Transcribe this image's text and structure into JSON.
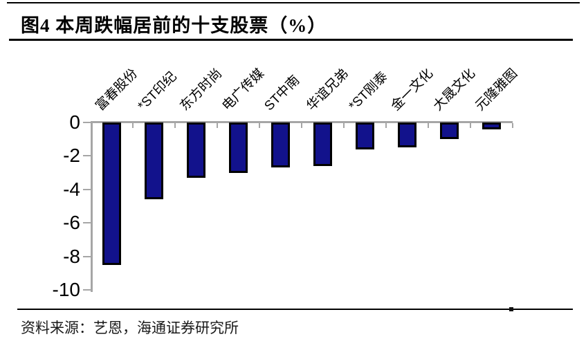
{
  "figure": {
    "label": "图4"
  },
  "chart_data": {
    "type": "bar",
    "title": "图4  本周跌幅居前的十支股票（%）",
    "categories": [
      "富春股份",
      "*ST印纪",
      "东方时尚",
      "电广传媒",
      "ST中南",
      "华谊兄弟",
      "*ST刚泰",
      "金一文化",
      "大晟文化",
      "元隆雅图"
    ],
    "values": [
      -8.5,
      -4.6,
      -3.3,
      -3.0,
      -2.7,
      -2.6,
      -1.6,
      -1.5,
      -1.0,
      -0.4
    ],
    "xlabel": "",
    "ylabel": "",
    "ylim": [
      -10,
      0
    ],
    "yticks": [
      0,
      -2,
      -4,
      -6,
      -8,
      -10
    ],
    "grid": false,
    "legend": false,
    "category_label_rotation_deg": 45,
    "bar_color": "#12128c",
    "bar_border_color": "#000000",
    "axis_color": "#a6a6a6",
    "source": "资料来源：艺恩，海通证券研究所"
  }
}
